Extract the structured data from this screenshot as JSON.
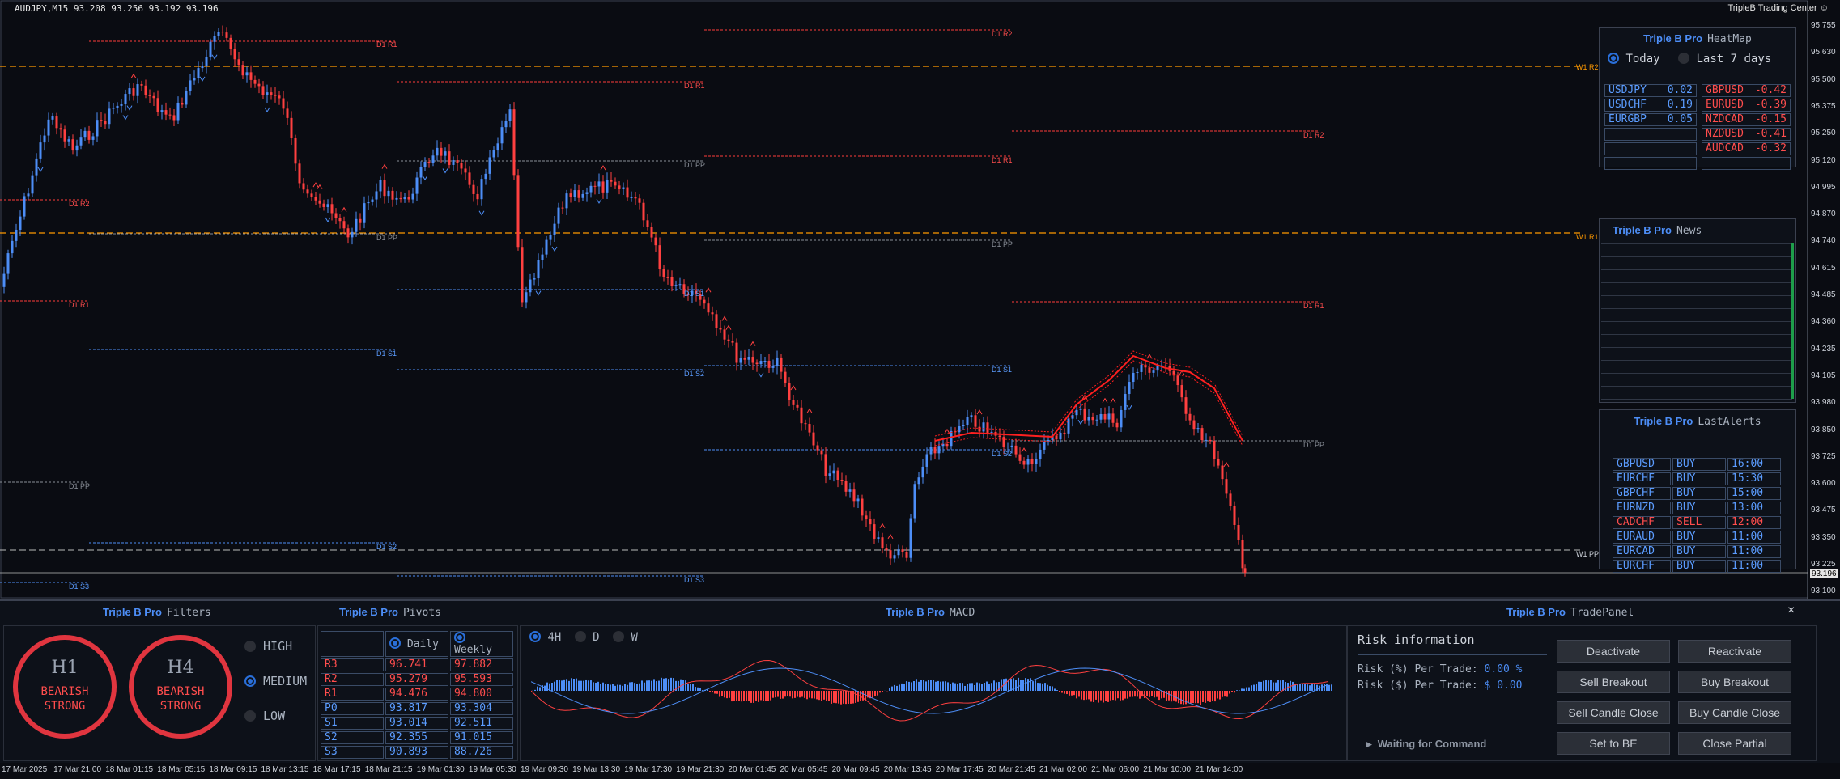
{
  "header": {
    "symbol_info": "AUDJPY,M15  93.208 93.256 93.192 93.196",
    "brand": "TripleB Trading Center",
    "brand_icon": "smiley-icon"
  },
  "price_axis": {
    "ticks": [
      "95.755",
      "95.630",
      "95.500",
      "95.375",
      "95.250",
      "95.120",
      "94.995",
      "94.870",
      "94.740",
      "94.615",
      "94.485",
      "94.360",
      "94.235",
      "94.105",
      "93.980",
      "93.850",
      "93.725",
      "93.600",
      "93.475",
      "93.350",
      "93.225",
      "93.100"
    ],
    "current": "93.196"
  },
  "time_axis": {
    "ticks": [
      "17 Mar 2025",
      "17 Mar 21:00",
      "18 Mar 01:15",
      "18 Mar 05:15",
      "18 Mar 09:15",
      "18 Mar 13:15",
      "18 Mar 17:15",
      "18 Mar 21:15",
      "19 Mar 01:30",
      "19 Mar 05:30",
      "19 Mar 09:30",
      "19 Mar 13:30",
      "19 Mar 17:30",
      "19 Mar 21:30",
      "20 Mar 01:45",
      "20 Mar 05:45",
      "20 Mar 09:45",
      "20 Mar 13:45",
      "20 Mar 17:45",
      "20 Mar 21:45",
      "21 Mar 02:00",
      "21 Mar 06:00",
      "21 Mar 10:00",
      "21 Mar 14:00"
    ]
  },
  "levels": {
    "d1r1": "D1 R1",
    "d1r2": "D1 R2",
    "d1pp": "D1 PP",
    "d1s1": "D1 S1",
    "d1s2": "D1 S2",
    "d1s3": "D1 S3",
    "w1r2": "W1 R2",
    "w1r1": "W1 R1",
    "w1pp": "W1 PP"
  },
  "heatmap": {
    "brand": "Triple B Pro",
    "name": "HeatMap",
    "opt_today": "Today",
    "opt_week": "Last 7 days",
    "pos": [
      {
        "pair": "USDJPY",
        "val": "0.02"
      },
      {
        "pair": "USDCHF",
        "val": "0.19"
      },
      {
        "pair": "EURGBP",
        "val": "0.05"
      }
    ],
    "neg": [
      {
        "pair": "GBPUSD",
        "val": "-0.42"
      },
      {
        "pair": "EURUSD",
        "val": "-0.39"
      },
      {
        "pair": "NZDCAD",
        "val": "-0.15"
      },
      {
        "pair": "NZDUSD",
        "val": "-0.41"
      },
      {
        "pair": "AUDCAD",
        "val": "-0.32"
      }
    ]
  },
  "news": {
    "brand": "Triple B Pro",
    "name": "News"
  },
  "alerts": {
    "brand": "Triple B Pro",
    "name": "LastAlerts",
    "rows": [
      {
        "pair": "GBPUSD",
        "side": "BUY",
        "time": "16:00"
      },
      {
        "pair": "EURCHF",
        "side": "BUY",
        "time": "15:30"
      },
      {
        "pair": "GBPCHF",
        "side": "BUY",
        "time": "15:00"
      },
      {
        "pair": "EURNZD",
        "side": "BUY",
        "time": "13:00"
      },
      {
        "pair": "CADCHF",
        "side": "SELL",
        "time": "12:00"
      },
      {
        "pair": "EURAUD",
        "side": "BUY",
        "time": "11:00"
      },
      {
        "pair": "EURCAD",
        "side": "BUY",
        "time": "11:00"
      },
      {
        "pair": "EURCHF",
        "side": "BUY",
        "time": "11:00"
      }
    ]
  },
  "filters": {
    "brand": "Triple B Pro",
    "name": "Filters",
    "g1_tf": "H1",
    "g1_l1": "BEARISH",
    "g1_l2": "STRONG",
    "g2_tf": "H4",
    "g2_l1": "BEARISH",
    "g2_l2": "STRONG",
    "high": "HIGH",
    "medium": "MEDIUM",
    "low": "LOW"
  },
  "pivots": {
    "brand": "Triple B Pro",
    "name": "Pivots",
    "daily": "Daily",
    "weekly": "Weekly",
    "rows": [
      {
        "lvl": "R3",
        "d": "96.741",
        "w": "97.882"
      },
      {
        "lvl": "R2",
        "d": "95.279",
        "w": "95.593"
      },
      {
        "lvl": "R1",
        "d": "94.476",
        "w": "94.800"
      },
      {
        "lvl": "P0",
        "d": "93.817",
        "w": "93.304"
      },
      {
        "lvl": "S1",
        "d": "93.014",
        "w": "92.511"
      },
      {
        "lvl": "S2",
        "d": "92.355",
        "w": "91.015"
      },
      {
        "lvl": "S3",
        "d": "90.893",
        "w": "88.726"
      }
    ]
  },
  "macd": {
    "brand": "Triple B Pro",
    "name": "MACD",
    "tf1": "4H",
    "tf2": "D",
    "tf3": "W"
  },
  "trade": {
    "brand": "Triple B Pro",
    "name": "TradePanel",
    "min": "_",
    "close": "×",
    "risk_title": "Risk information",
    "risk_pct_label": "Risk (%) Per Trade:",
    "risk_pct_val": "0.00 %",
    "risk_usd_label": "Risk ($) Per Trade:",
    "risk_usd_val": "$ 0.00",
    "status": "Waiting for Command",
    "b_deact": "Deactivate",
    "b_react": "Reactivate",
    "b_sellbrk": "Sell Breakout",
    "b_buybrk": "Buy Breakout",
    "b_sellcc": "Sell Candle Close",
    "b_buycc": "Buy Candle Close",
    "b_be": "Set to BE",
    "b_partial": "Close Partial"
  },
  "colors": {
    "bull": "#4d8ef7",
    "bear": "#ff4040",
    "weekly": "#ff9900",
    "bg": "#0a0c12"
  }
}
